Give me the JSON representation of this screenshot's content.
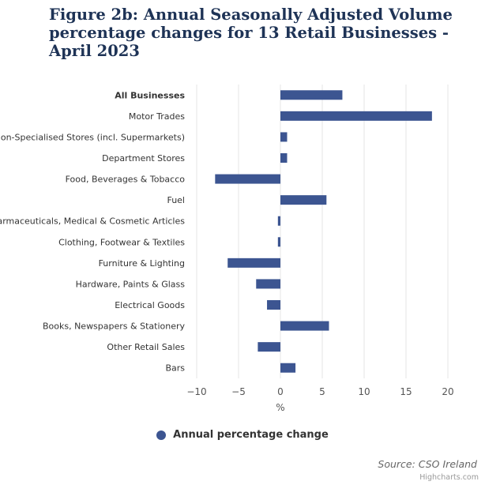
{
  "chart_data": {
    "type": "bar",
    "orientation": "horizontal",
    "title": "Figure 2b: Annual Seasonally Adjusted Volume percentage changes for 13 Retail Businesses - April 2023",
    "categories": [
      "All Businesses",
      "Motor Trades",
      "Non-Specialised Stores (incl. Supermarkets)",
      "Department Stores",
      "Food, Beverages & Tobacco",
      "Fuel",
      "Pharmaceuticals, Medical & Cosmetic Articles",
      "Clothing, Footwear & Textiles",
      "Furniture & Lighting",
      "Hardware, Paints & Glass",
      "Electrical Goods",
      "Books, Newspapers & Stationery",
      "Other Retail Sales",
      "Bars"
    ],
    "bold_categories": [
      "All Businesses"
    ],
    "series": [
      {
        "name": "Annual percentage change",
        "color": "#3c5591",
        "values": [
          7.4,
          18.1,
          0.8,
          0.8,
          -7.8,
          5.5,
          -0.3,
          -0.3,
          -6.3,
          -2.9,
          -1.6,
          5.8,
          -2.7,
          1.8
        ]
      }
    ],
    "xlabel": "%",
    "ylabel": "",
    "xlim": [
      -10,
      20
    ],
    "xticks": [
      -10,
      -5,
      0,
      5,
      10,
      15,
      20
    ],
    "xtick_labels": [
      "−10",
      "−5",
      "0",
      "5",
      "10",
      "15",
      "20"
    ],
    "grid": true,
    "legend_position": "bottom"
  },
  "source": "Source: CSO Ireland",
  "credit": "Highcharts.com"
}
